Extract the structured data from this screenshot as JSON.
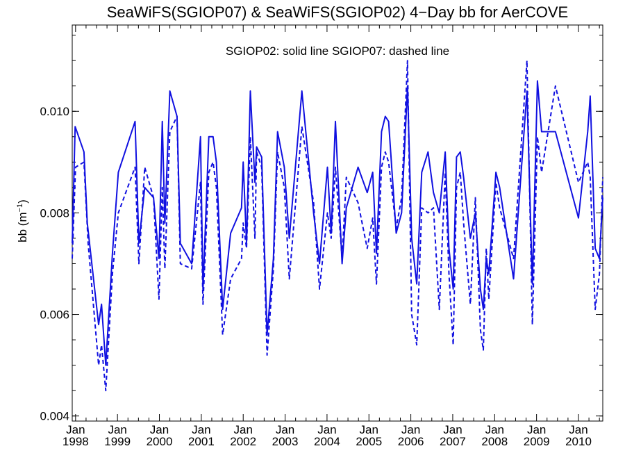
{
  "chart_data": {
    "type": "line",
    "title": "SeaWiFS(SGIOP07) & SeaWiFS(SGIOP02) 4−Day bb for AerCOVE",
    "ylabel_main": "bb (m",
    "ylabel_exp": "−1",
    "ylabel_close": ")",
    "annotation": "SGIOP02: solid line   SGIOP07: dashed line",
    "x_domain": [
      1997.92,
      2010.58
    ],
    "ylim": [
      0.0039,
      0.0117
    ],
    "y_ticks": [
      0.004,
      0.006,
      0.008,
      0.01
    ],
    "y_tick_labels": [
      "0.004",
      "0.006",
      "0.008",
      "0.010"
    ],
    "x_ticks": [
      {
        "year": 1998,
        "month": "Jan",
        "label": "1998"
      },
      {
        "year": 1999,
        "month": "Jan",
        "label": "1999"
      },
      {
        "year": 2000,
        "month": "Jan",
        "label": "2000"
      },
      {
        "year": 2001,
        "month": "Jan",
        "label": "2001"
      },
      {
        "year": 2002,
        "month": "Jan",
        "label": "2002"
      },
      {
        "year": 2003,
        "month": "Jan",
        "label": "2003"
      },
      {
        "year": 2004,
        "month": "Jan",
        "label": "2004"
      },
      {
        "year": 2005,
        "month": "Jan",
        "label": "2005"
      },
      {
        "year": 2006,
        "month": "Jan",
        "label": "2006"
      },
      {
        "year": 2007,
        "month": "Jan",
        "label": "2007"
      },
      {
        "year": 2008,
        "month": "Jan",
        "label": "2008"
      },
      {
        "year": 2009,
        "month": "Jan",
        "label": "2009"
      },
      {
        "year": 2010,
        "month": "Jan",
        "label": "2010"
      }
    ],
    "grid": false,
    "series": [
      {
        "name": "SGIOP02",
        "style": "solid",
        "color": "#1010e0",
        "points": [
          [
            1997.92,
            0.0074
          ],
          [
            1997.99,
            0.0097
          ],
          [
            1998.2,
            0.0092
          ],
          [
            1998.28,
            0.0078
          ],
          [
            1998.55,
            0.0058
          ],
          [
            1998.62,
            0.0062
          ],
          [
            1998.72,
            0.005
          ],
          [
            1998.88,
            0.0072
          ],
          [
            1999.02,
            0.0088
          ],
          [
            1999.42,
            0.0098
          ],
          [
            1999.51,
            0.0074
          ],
          [
            1999.65,
            0.0085
          ],
          [
            1999.86,
            0.0083
          ],
          [
            1999.99,
            0.0071
          ],
          [
            2000.07,
            0.0098
          ],
          [
            2000.13,
            0.0078
          ],
          [
            2000.25,
            0.0104
          ],
          [
            2000.42,
            0.0099
          ],
          [
            2000.5,
            0.0074
          ],
          [
            2000.77,
            0.007
          ],
          [
            2000.98,
            0.0095
          ],
          [
            2001.04,
            0.0065
          ],
          [
            2001.18,
            0.0095
          ],
          [
            2001.28,
            0.0095
          ],
          [
            2001.36,
            0.009
          ],
          [
            2001.51,
            0.0061
          ],
          [
            2001.7,
            0.0076
          ],
          [
            2001.96,
            0.0081
          ],
          [
            2002.0,
            0.009
          ],
          [
            2002.08,
            0.0074
          ],
          [
            2002.17,
            0.0104
          ],
          [
            2002.28,
            0.0086
          ],
          [
            2002.32,
            0.0093
          ],
          [
            2002.44,
            0.0091
          ],
          [
            2002.57,
            0.0056
          ],
          [
            2002.72,
            0.0071
          ],
          [
            2002.82,
            0.0096
          ],
          [
            2002.98,
            0.0089
          ],
          [
            2003.1,
            0.0075
          ],
          [
            2003.4,
            0.0104
          ],
          [
            2003.68,
            0.008
          ],
          [
            2003.82,
            0.007
          ],
          [
            2004.01,
            0.0089
          ],
          [
            2004.1,
            0.0076
          ],
          [
            2004.2,
            0.0098
          ],
          [
            2004.36,
            0.007
          ],
          [
            2004.46,
            0.0081
          ],
          [
            2004.74,
            0.0089
          ],
          [
            2004.96,
            0.0084
          ],
          [
            2005.09,
            0.0088
          ],
          [
            2005.18,
            0.0072
          ],
          [
            2005.3,
            0.0096
          ],
          [
            2005.39,
            0.0099
          ],
          [
            2005.47,
            0.0098
          ],
          [
            2005.65,
            0.0076
          ],
          [
            2005.78,
            0.008
          ],
          [
            2005.92,
            0.0105
          ],
          [
            2006.02,
            0.0075
          ],
          [
            2006.14,
            0.0066
          ],
          [
            2006.26,
            0.0088
          ],
          [
            2006.41,
            0.0092
          ],
          [
            2006.54,
            0.0084
          ],
          [
            2006.68,
            0.008
          ],
          [
            2006.82,
            0.0092
          ],
          [
            2006.91,
            0.0073
          ],
          [
            2007.01,
            0.0065
          ],
          [
            2007.09,
            0.0091
          ],
          [
            2007.18,
            0.0092
          ],
          [
            2007.26,
            0.0087
          ],
          [
            2007.42,
            0.0075
          ],
          [
            2007.54,
            0.008
          ],
          [
            2007.66,
            0.0065
          ],
          [
            2007.73,
            0.0061
          ],
          [
            2007.8,
            0.0071
          ],
          [
            2007.86,
            0.0068
          ],
          [
            2008.03,
            0.0088
          ],
          [
            2008.12,
            0.0085
          ],
          [
            2008.45,
            0.0067
          ],
          [
            2008.77,
            0.0104
          ],
          [
            2008.9,
            0.0066
          ],
          [
            2009.02,
            0.0106
          ],
          [
            2009.12,
            0.0096
          ],
          [
            2009.45,
            0.0096
          ],
          [
            2010.0,
            0.0079
          ],
          [
            2010.22,
            0.0096
          ],
          [
            2010.28,
            0.0103
          ],
          [
            2010.4,
            0.0073
          ],
          [
            2010.5,
            0.0071
          ],
          [
            2010.58,
            0.0083
          ]
        ]
      },
      {
        "name": "SGIOP07",
        "style": "dashed",
        "color": "#1010e0",
        "points": [
          [
            1997.92,
            0.0071
          ],
          [
            1998.0,
            0.0089
          ],
          [
            1998.2,
            0.009
          ],
          [
            1998.3,
            0.0074
          ],
          [
            1998.55,
            0.005
          ],
          [
            1998.62,
            0.0054
          ],
          [
            1998.72,
            0.0045
          ],
          [
            1998.88,
            0.0068
          ],
          [
            1999.02,
            0.008
          ],
          [
            1999.42,
            0.0089
          ],
          [
            1999.51,
            0.007
          ],
          [
            1999.65,
            0.0089
          ],
          [
            1999.86,
            0.0083
          ],
          [
            1999.99,
            0.0063
          ],
          [
            2000.07,
            0.0085
          ],
          [
            2000.13,
            0.0069
          ],
          [
            2000.25,
            0.0096
          ],
          [
            2000.42,
            0.0099
          ],
          [
            2000.5,
            0.007
          ],
          [
            2000.77,
            0.0069
          ],
          [
            2000.98,
            0.0086
          ],
          [
            2001.04,
            0.0062
          ],
          [
            2001.18,
            0.0088
          ],
          [
            2001.28,
            0.009
          ],
          [
            2001.36,
            0.0085
          ],
          [
            2001.51,
            0.0056
          ],
          [
            2001.7,
            0.0067
          ],
          [
            2001.96,
            0.0071
          ],
          [
            2002.0,
            0.0078
          ],
          [
            2002.08,
            0.0073
          ],
          [
            2002.17,
            0.0095
          ],
          [
            2002.28,
            0.0075
          ],
          [
            2002.32,
            0.0092
          ],
          [
            2002.44,
            0.0089
          ],
          [
            2002.57,
            0.0052
          ],
          [
            2002.72,
            0.0069
          ],
          [
            2002.82,
            0.0092
          ],
          [
            2002.98,
            0.0085
          ],
          [
            2003.1,
            0.0067
          ],
          [
            2003.4,
            0.0097
          ],
          [
            2003.68,
            0.0082
          ],
          [
            2003.82,
            0.0065
          ],
          [
            2004.01,
            0.008
          ],
          [
            2004.1,
            0.0075
          ],
          [
            2004.2,
            0.0089
          ],
          [
            2004.36,
            0.0071
          ],
          [
            2004.46,
            0.0087
          ],
          [
            2004.74,
            0.0082
          ],
          [
            2004.96,
            0.0073
          ],
          [
            2005.09,
            0.0079
          ],
          [
            2005.18,
            0.0066
          ],
          [
            2005.3,
            0.0089
          ],
          [
            2005.39,
            0.0092
          ],
          [
            2005.47,
            0.009
          ],
          [
            2005.65,
            0.0077
          ],
          [
            2005.78,
            0.0083
          ],
          [
            2005.92,
            0.011
          ],
          [
            2006.02,
            0.006
          ],
          [
            2006.14,
            0.0054
          ],
          [
            2006.26,
            0.0081
          ],
          [
            2006.41,
            0.008
          ],
          [
            2006.54,
            0.0081
          ],
          [
            2006.68,
            0.0061
          ],
          [
            2006.82,
            0.0088
          ],
          [
            2006.91,
            0.0068
          ],
          [
            2007.01,
            0.0054
          ],
          [
            2007.09,
            0.0085
          ],
          [
            2007.18,
            0.0088
          ],
          [
            2007.26,
            0.0078
          ],
          [
            2007.42,
            0.0062
          ],
          [
            2007.54,
            0.0083
          ],
          [
            2007.66,
            0.0057
          ],
          [
            2007.73,
            0.0053
          ],
          [
            2007.8,
            0.0073
          ],
          [
            2007.86,
            0.0063
          ],
          [
            2008.03,
            0.0086
          ],
          [
            2008.12,
            0.0081
          ],
          [
            2008.45,
            0.0071
          ],
          [
            2008.77,
            0.011
          ],
          [
            2008.9,
            0.0058
          ],
          [
            2009.02,
            0.0095
          ],
          [
            2009.12,
            0.0088
          ],
          [
            2009.45,
            0.0105
          ],
          [
            2010.0,
            0.0086
          ],
          [
            2010.22,
            0.009
          ],
          [
            2010.28,
            0.0087
          ],
          [
            2010.4,
            0.0061
          ],
          [
            2010.5,
            0.0068
          ],
          [
            2010.58,
            0.0087
          ]
        ]
      }
    ]
  }
}
